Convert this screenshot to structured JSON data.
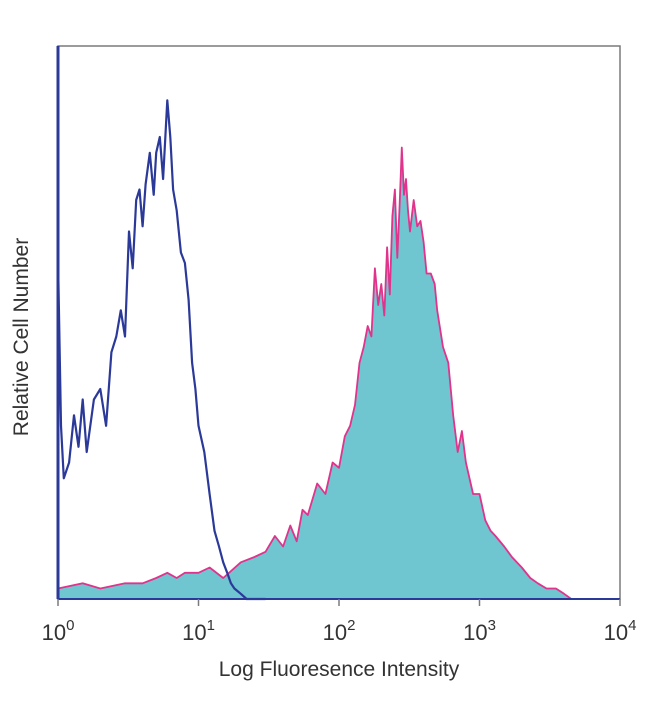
{
  "chart_data": {
    "type": "area",
    "title": "",
    "xlabel": "Log Fluoresence Intensity",
    "ylabel": "Relative Cell Number",
    "xscale": "log",
    "xlim": [
      1,
      10000
    ],
    "ylim": [
      0,
      1
    ],
    "grid": false,
    "legend": "none",
    "x_ticks": [
      {
        "base": "10",
        "exp": "0"
      },
      {
        "base": "10",
        "exp": "1"
      },
      {
        "base": "10",
        "exp": "2"
      },
      {
        "base": "10",
        "exp": "3"
      },
      {
        "base": "10",
        "exp": "4"
      }
    ],
    "series": [
      {
        "style": "line",
        "color": "#2b3a99",
        "x": [
          1.0,
          1.05,
          1.1,
          1.2,
          1.3,
          1.4,
          1.5,
          1.6,
          1.8,
          2.0,
          2.2,
          2.4,
          2.6,
          2.8,
          3.0,
          3.2,
          3.4,
          3.6,
          3.8,
          4.0,
          4.2,
          4.5,
          4.8,
          5.0,
          5.3,
          5.6,
          6.0,
          6.3,
          6.6,
          7.0,
          7.5,
          8.0,
          8.5,
          9.0,
          9.5,
          10.0,
          11.0,
          12.0,
          13.0,
          14.0,
          15.0,
          16.0,
          17.0,
          18.0,
          20.0,
          22.0,
          25.0,
          30.0
        ],
        "y": [
          0.65,
          0.33,
          0.23,
          0.26,
          0.35,
          0.29,
          0.38,
          0.28,
          0.38,
          0.4,
          0.33,
          0.47,
          0.5,
          0.55,
          0.5,
          0.7,
          0.63,
          0.76,
          0.78,
          0.71,
          0.79,
          0.85,
          0.77,
          0.85,
          0.88,
          0.8,
          0.95,
          0.88,
          0.78,
          0.74,
          0.66,
          0.64,
          0.57,
          0.45,
          0.4,
          0.33,
          0.28,
          0.2,
          0.13,
          0.1,
          0.07,
          0.05,
          0.03,
          0.02,
          0.01,
          0.0,
          0.0,
          0.0
        ]
      },
      {
        "style": "area",
        "line_color": "#e0338c",
        "fill_color": "#6fc5d0",
        "x": [
          1.0,
          1.5,
          2.0,
          3.0,
          4.0,
          5.0,
          6.0,
          7.0,
          8.0,
          10.0,
          12.0,
          15.0,
          20.0,
          25.0,
          30.0,
          35.0,
          40.0,
          45.0,
          50.0,
          55.0,
          60.0,
          70.0,
          80.0,
          90.0,
          100.0,
          110.0,
          120.0,
          130.0,
          140.0,
          150.0,
          160.0,
          170.0,
          180.0,
          190.0,
          200.0,
          210.0,
          220.0,
          230.0,
          240.0,
          250.0,
          260.0,
          270.0,
          280.0,
          290.0,
          300.0,
          310.0,
          320.0,
          340.0,
          360.0,
          380.0,
          400.0,
          420.0,
          450.0,
          480.0,
          500.0,
          550.0,
          600.0,
          650.0,
          700.0,
          750.0,
          800.0,
          900.0,
          1000.0,
          1100.0,
          1200.0,
          1300.0,
          1500.0,
          1700.0,
          2000.0,
          2300.0,
          2600.0,
          3000.0,
          3500.0,
          4000.0,
          4500.0,
          5000.0
        ],
        "y": [
          0.02,
          0.03,
          0.02,
          0.03,
          0.03,
          0.04,
          0.05,
          0.04,
          0.05,
          0.05,
          0.06,
          0.04,
          0.07,
          0.08,
          0.09,
          0.12,
          0.1,
          0.14,
          0.11,
          0.17,
          0.16,
          0.22,
          0.2,
          0.26,
          0.25,
          0.31,
          0.33,
          0.37,
          0.45,
          0.48,
          0.52,
          0.5,
          0.63,
          0.56,
          0.6,
          0.54,
          0.67,
          0.58,
          0.73,
          0.78,
          0.65,
          0.75,
          0.86,
          0.77,
          0.8,
          0.74,
          0.7,
          0.76,
          0.71,
          0.72,
          0.68,
          0.62,
          0.62,
          0.6,
          0.55,
          0.48,
          0.45,
          0.35,
          0.28,
          0.32,
          0.26,
          0.2,
          0.2,
          0.15,
          0.13,
          0.12,
          0.1,
          0.08,
          0.06,
          0.04,
          0.03,
          0.02,
          0.02,
          0.01,
          0.0,
          0.0
        ]
      }
    ]
  }
}
